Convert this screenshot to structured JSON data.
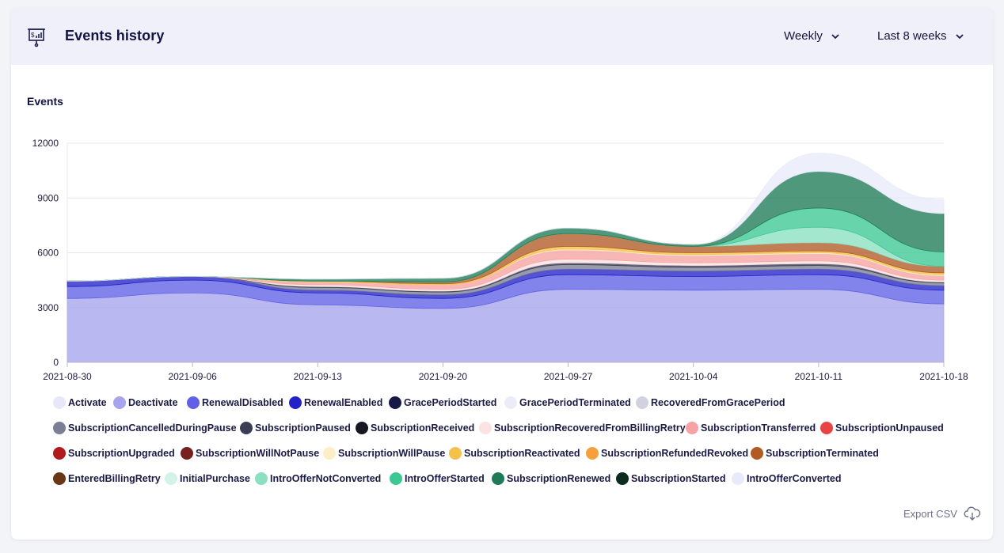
{
  "header": {
    "title": "Events history",
    "interval": "Weekly",
    "range": "Last 8 weeks"
  },
  "export_label": "Export CSV",
  "icons": {
    "header": "presentation-chart-icon",
    "dropdown": "chevron-down-icon",
    "export": "cloud-download-icon"
  },
  "chart_data": {
    "type": "area",
    "stacked": true,
    "ylabel": "Events",
    "ylim": [
      0,
      12000
    ],
    "yticks": [
      0,
      3000,
      6000,
      9000,
      12000
    ],
    "x": [
      "2021-08-30",
      "2021-09-06",
      "2021-09-13",
      "2021-09-20",
      "2021-09-27",
      "2021-10-04",
      "2021-10-11",
      "2021-10-18"
    ],
    "grid": true,
    "legend_position": "bottom",
    "series": [
      {
        "name": "Activate",
        "color": "#e6e7f8",
        "values": [
          0,
          0,
          0,
          0,
          0,
          0,
          0,
          0
        ]
      },
      {
        "name": "Deactivate",
        "color": "#a6a4ec",
        "values": [
          3500,
          3800,
          3150,
          2950,
          4000,
          3950,
          4000,
          3200
        ]
      },
      {
        "name": "RenewalDisabled",
        "color": "#6061e6",
        "values": [
          650,
          700,
          650,
          550,
          800,
          750,
          800,
          750
        ]
      },
      {
        "name": "RenewalEnabled",
        "color": "#2222c8",
        "values": [
          300,
          200,
          150,
          200,
          300,
          300,
          300,
          250
        ]
      },
      {
        "name": "GracePeriodStarted",
        "color": "#161845",
        "values": [
          0,
          0,
          0,
          0,
          0,
          0,
          0,
          0
        ]
      },
      {
        "name": "GracePeriodTerminated",
        "color": "#ecebf8",
        "values": [
          0,
          0,
          0,
          0,
          0,
          0,
          0,
          0
        ]
      },
      {
        "name": "RecoveredFromGracePeriod",
        "color": "#d1d1e0",
        "values": [
          0,
          0,
          0,
          0,
          0,
          0,
          0,
          0
        ]
      },
      {
        "name": "SubscriptionCancelledDuringPause",
        "color": "#7b7f95",
        "values": [
          0,
          0,
          150,
          150,
          250,
          200,
          200,
          150
        ]
      },
      {
        "name": "SubscriptionPaused",
        "color": "#3b3d55",
        "values": [
          0,
          0,
          50,
          50,
          100,
          100,
          100,
          50
        ]
      },
      {
        "name": "SubscriptionReceived",
        "color": "#161722",
        "values": [
          0,
          0,
          0,
          0,
          0,
          0,
          0,
          0
        ]
      },
      {
        "name": "SubscriptionRecoveredFromBillingRetry",
        "color": "#fde2e2",
        "values": [
          0,
          0,
          100,
          100,
          200,
          150,
          150,
          100
        ]
      },
      {
        "name": "SubscriptionTransferred",
        "color": "#f6a3a3",
        "values": [
          0,
          0,
          150,
          250,
          500,
          400,
          400,
          250
        ]
      },
      {
        "name": "SubscriptionUnpaused",
        "color": "#e94444",
        "values": [
          0,
          0,
          0,
          0,
          0,
          0,
          0,
          0
        ]
      },
      {
        "name": "SubscriptionUpgraded",
        "color": "#b01c1c",
        "values": [
          0,
          0,
          0,
          0,
          0,
          0,
          0,
          0
        ]
      },
      {
        "name": "SubscriptionWillNotPause",
        "color": "#762020",
        "values": [
          0,
          0,
          0,
          0,
          0,
          0,
          0,
          0
        ]
      },
      {
        "name": "SubscriptionWillPause",
        "color": "#fcefc7",
        "values": [
          0,
          0,
          0,
          0,
          50,
          50,
          50,
          50
        ]
      },
      {
        "name": "SubscriptionReactivated",
        "color": "#f5c14a",
        "values": [
          0,
          0,
          50,
          50,
          150,
          100,
          100,
          100
        ]
      },
      {
        "name": "SubscriptionRefundedRevoked",
        "color": "#f5a03c",
        "values": [
          0,
          0,
          0,
          0,
          0,
          0,
          0,
          0
        ]
      },
      {
        "name": "SubscriptionTerminated",
        "color": "#b15a24",
        "values": [
          0,
          0,
          0,
          100,
          700,
          350,
          450,
          350
        ]
      },
      {
        "name": "EnteredBillingRetry",
        "color": "#6a3716",
        "values": [
          0,
          0,
          0,
          0,
          0,
          0,
          0,
          0
        ]
      },
      {
        "name": "InitialPurchase",
        "color": "#d4f3e7",
        "values": [
          0,
          0,
          0,
          0,
          0,
          0,
          0,
          0
        ]
      },
      {
        "name": "IntroOfferNotConverted",
        "color": "#8be0c2",
        "values": [
          0,
          0,
          0,
          0,
          0,
          0,
          850,
          0
        ]
      },
      {
        "name": "IntroOfferStarted",
        "color": "#3cc893",
        "values": [
          0,
          0,
          0,
          0,
          0,
          0,
          1050,
          800
        ]
      },
      {
        "name": "SubscriptionRenewed",
        "color": "#1f7b57",
        "values": [
          0,
          0,
          100,
          200,
          300,
          100,
          2000,
          2100
        ]
      },
      {
        "name": "SubscriptionStarted",
        "color": "#0e2b1f",
        "values": [
          0,
          0,
          0,
          0,
          0,
          0,
          0,
          0
        ]
      },
      {
        "name": "IntroOfferConverted",
        "color": "#e8eaf9",
        "values": [
          0,
          0,
          0,
          0,
          0,
          0,
          1000,
          750
        ]
      }
    ]
  }
}
